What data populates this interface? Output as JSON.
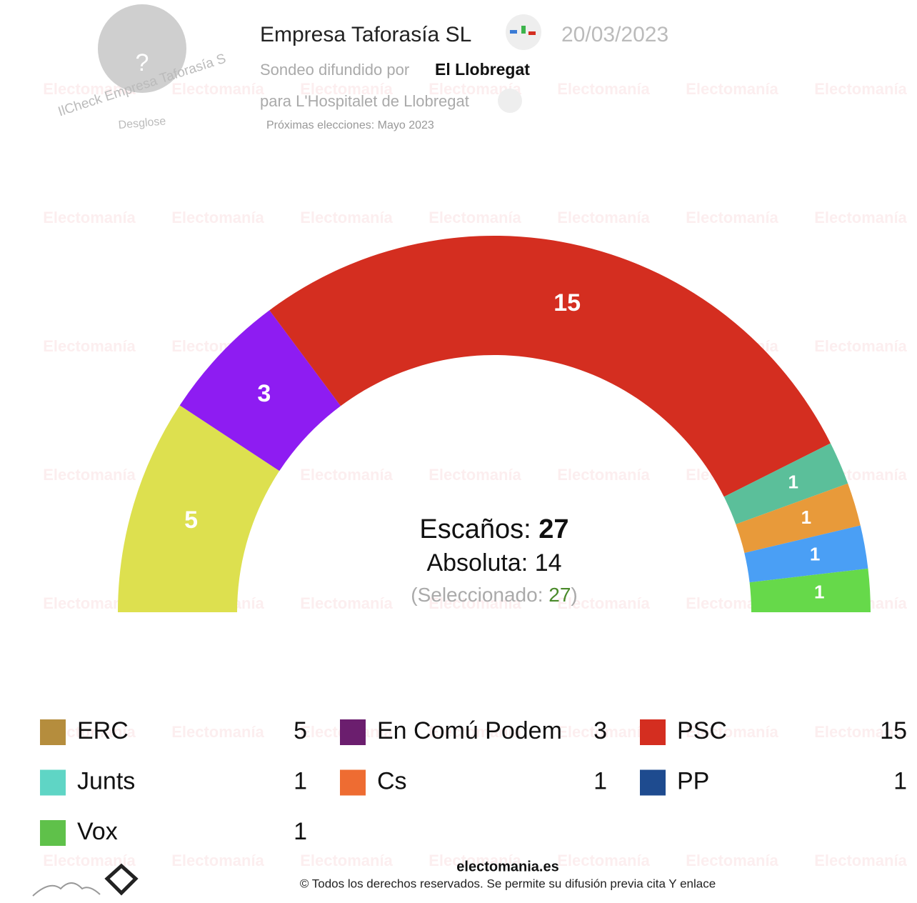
{
  "header": {
    "pollster": "Empresa Taforasía SL",
    "date": "20/03/2023",
    "spread_by_label": "Sondeo difundido por",
    "spread_by": "El Llobregat",
    "place": "para L'Hospitalet de Llobregat",
    "next_elections": "Próximas elecciones: Mayo 2023",
    "avatar_mark": "?",
    "stamp_top": "IlCheck Empresa Taforasía S",
    "stamp_bottom": "Desglose"
  },
  "watermark": "Electomanía",
  "chart_data": {
    "type": "hemicycle",
    "categories": [
      "ERC",
      "En Comú Podem",
      "PSC",
      "Junts",
      "Cs",
      "PP",
      "Vox"
    ],
    "values": [
      5,
      3,
      15,
      1,
      1,
      1,
      1
    ],
    "colors": [
      "#dde04f",
      "#8e1cf2",
      "#d42e20",
      "#5bbf9a",
      "#e89a3a",
      "#4a9ff5",
      "#66d94a"
    ],
    "seats_label": "Escaños:",
    "seats_total": 27,
    "majority_label": "Absoluta:",
    "majority": 14,
    "selected_open": "(Seleccionado:",
    "selected": 27,
    "selected_close": ")"
  },
  "footer": {
    "site": "electomania.es",
    "rights": "© Todos los derechos reservados. Se permite su difusión previa cita Y enlace"
  }
}
